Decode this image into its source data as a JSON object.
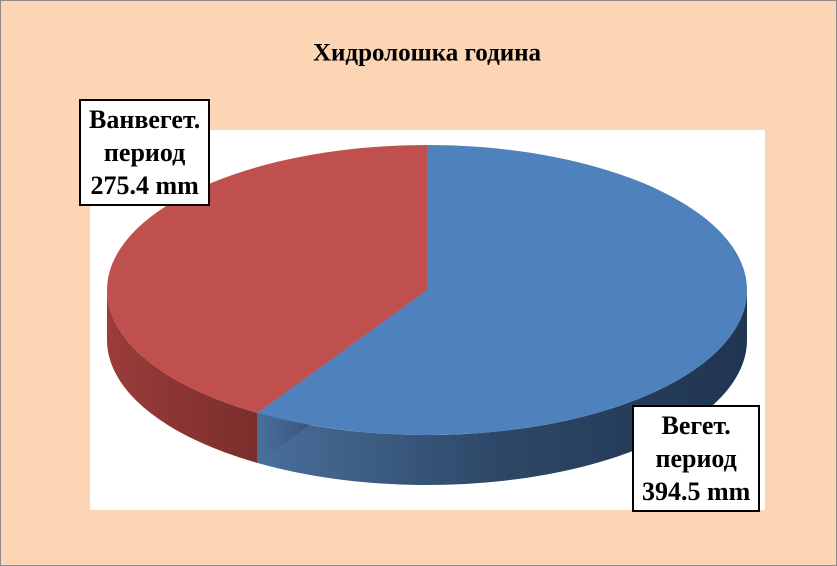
{
  "chart_data": {
    "type": "pie",
    "title": "Хидролошка година",
    "categories": [
      "Вегет. период",
      "Ванвегет. период"
    ],
    "values": [
      394.5,
      275.4
    ],
    "value_labels": [
      "394.5 mm",
      "275.4 mm"
    ],
    "colors": [
      "#4f81bd",
      "#c0504d"
    ],
    "three_d": true
  }
}
